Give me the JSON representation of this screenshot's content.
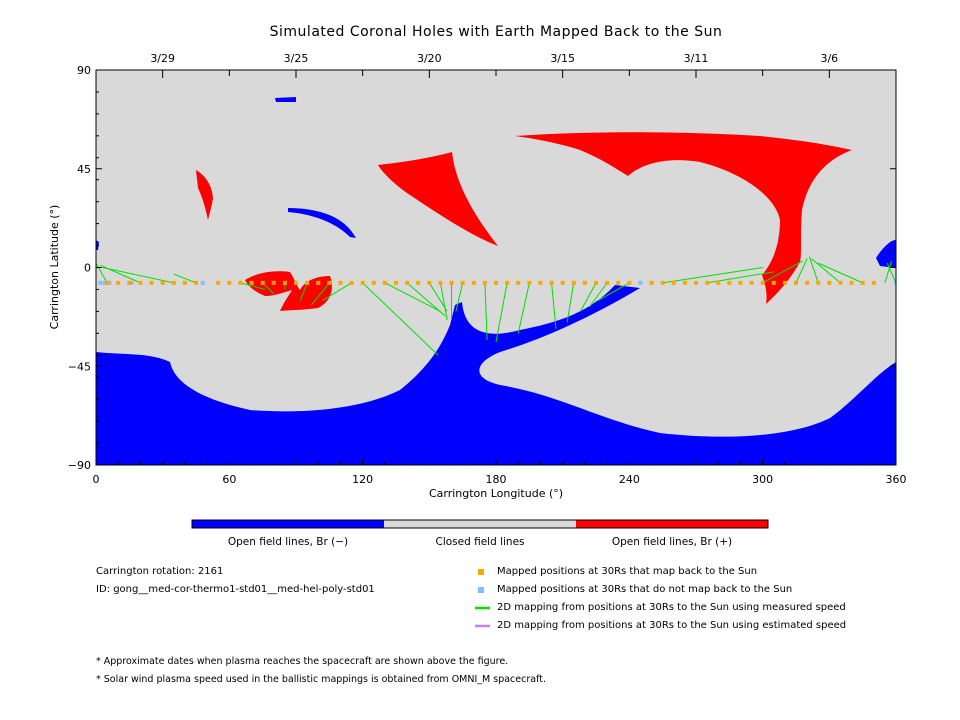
{
  "chart_data": {
    "type": "map",
    "title": "Simulated Coronal Holes with Earth Mapped Back to the Sun",
    "xlabel": "Carrington Longitude (°)",
    "ylabel": "Carrington Latitude (°)",
    "xlim": [
      0,
      360
    ],
    "ylim": [
      -90,
      90
    ],
    "x_ticks": [
      0,
      60,
      120,
      180,
      240,
      300,
      360
    ],
    "y_ticks": [
      -90,
      -45,
      0,
      45,
      90
    ],
    "top_axis": {
      "ticks": [
        {
          "lon": 30,
          "label": "3/29"
        },
        {
          "lon": 90,
          "label": "3/25"
        },
        {
          "lon": 150,
          "label": "3/20"
        },
        {
          "lon": 210,
          "label": "3/15"
        },
        {
          "lon": 270,
          "label": "3/11"
        },
        {
          "lon": 330,
          "label": "3/6"
        }
      ]
    },
    "colors": {
      "open_negative": "#0000ff",
      "closed": "#d9d9d9",
      "open_positive": "#ff0000",
      "mapped": "#ffa500",
      "not_mapped": "#7fbfff",
      "measured_line": "#00e000",
      "estimated_line": "#c080ff"
    },
    "colorbar": [
      {
        "label": "Open field lines, Br (−)",
        "color": "#0000ff"
      },
      {
        "label": "Closed field lines",
        "color": "#d9d9d9"
      },
      {
        "label": "Open field lines, Br (+)",
        "color": "#ff0000"
      }
    ],
    "spacecraft_lat": -7,
    "mapped_positions_lon": [
      5,
      10,
      15,
      20,
      25,
      30,
      35,
      40,
      45,
      55,
      60,
      65,
      70,
      75,
      80,
      85,
      90,
      95,
      100,
      105,
      110,
      115,
      120,
      125,
      130,
      135,
      140,
      145,
      150,
      155,
      160,
      165,
      170,
      175,
      180,
      185,
      190,
      195,
      200,
      205,
      210,
      215,
      220,
      225,
      230,
      235,
      240,
      250,
      255,
      260,
      265,
      270,
      275,
      280,
      285,
      290,
      295,
      300,
      305,
      310,
      315,
      320,
      325,
      330,
      335,
      340,
      345,
      350
    ],
    "not_mapped_positions_lon": [
      2,
      4,
      6,
      16,
      48,
      245,
      250,
      360
    ],
    "mapping_lines": [
      {
        "from": [
          5,
          -7
        ],
        "to": [
          0,
          2
        ]
      },
      {
        "from": [
          20,
          -7
        ],
        "to": [
          2,
          1
        ]
      },
      {
        "from": [
          35,
          -7
        ],
        "to": [
          3,
          0
        ]
      },
      {
        "from": [
          45,
          -7
        ],
        "to": [
          35,
          -3
        ]
      },
      {
        "from": [
          65,
          -7
        ],
        "to": [
          76,
          -10
        ]
      },
      {
        "from": [
          75,
          -7
        ],
        "to": [
          80,
          -12
        ]
      },
      {
        "from": [
          85,
          -7
        ],
        "to": [
          85,
          -10
        ]
      },
      {
        "from": [
          95,
          -7
        ],
        "to": [
          92,
          -15
        ]
      },
      {
        "from": [
          105,
          -7
        ],
        "to": [
          97,
          -17
        ]
      },
      {
        "from": [
          115,
          -7
        ],
        "to": [
          102,
          -15
        ]
      },
      {
        "from": [
          130,
          -7
        ],
        "to": [
          155,
          -20
        ]
      },
      {
        "from": [
          140,
          -7
        ],
        "to": [
          157,
          -22
        ]
      },
      {
        "from": [
          150,
          -7
        ],
        "to": [
          158,
          -20
        ]
      },
      {
        "from": [
          155,
          -7
        ],
        "to": [
          158,
          -24
        ]
      },
      {
        "from": [
          160,
          -7
        ],
        "to": [
          160,
          -23
        ]
      },
      {
        "from": [
          165,
          -7
        ],
        "to": [
          162,
          -20
        ]
      },
      {
        "from": [
          120,
          -7
        ],
        "to": [
          154,
          -40
        ]
      },
      {
        "from": [
          175,
          -7
        ],
        "to": [
          176,
          -33
        ]
      },
      {
        "from": [
          185,
          -7
        ],
        "to": [
          180,
          -34
        ]
      },
      {
        "from": [
          195,
          -7
        ],
        "to": [
          190,
          -30
        ]
      },
      {
        "from": [
          205,
          -7
        ],
        "to": [
          207,
          -28
        ]
      },
      {
        "from": [
          215,
          -7
        ],
        "to": [
          212,
          -25
        ]
      },
      {
        "from": [
          225,
          -7
        ],
        "to": [
          218,
          -20
        ]
      },
      {
        "from": [
          230,
          -7
        ],
        "to": [
          222,
          -18
        ]
      },
      {
        "from": [
          240,
          -7
        ],
        "to": [
          226,
          -15
        ]
      },
      {
        "from": [
          255,
          -7
        ],
        "to": [
          300,
          0
        ]
      },
      {
        "from": [
          275,
          -7
        ],
        "to": [
          305,
          -2
        ]
      },
      {
        "from": [
          300,
          -7
        ],
        "to": [
          318,
          3
        ]
      },
      {
        "from": [
          315,
          -7
        ],
        "to": [
          320,
          4
        ]
      },
      {
        "from": [
          325,
          -7
        ],
        "to": [
          321,
          5
        ]
      },
      {
        "from": [
          335,
          -7
        ],
        "to": [
          322,
          4
        ]
      },
      {
        "from": [
          345,
          -7
        ],
        "to": [
          325,
          2
        ]
      },
      {
        "from": [
          355,
          -7
        ],
        "to": [
          358,
          3
        ]
      },
      {
        "from": [
          360,
          -7
        ],
        "to": [
          356,
          2
        ]
      }
    ]
  },
  "info": {
    "rotation_label": "Carrington rotation: 2161",
    "id_label": "ID: gong__med-cor-thermo1-std01__med-hel-poly-std01"
  },
  "legend": [
    {
      "label": "Mapped positions at 30Rs that map back to the Sun",
      "color": "#ffa500",
      "kind": "square"
    },
    {
      "label": "Mapped positions at 30Rs that do not map back to the Sun",
      "color": "#7fbfff",
      "kind": "square"
    },
    {
      "label": "2D mapping from positions at 30Rs to the Sun using measured speed",
      "color": "#00e000",
      "kind": "line"
    },
    {
      "label": "2D mapping from positions at 30Rs to the Sun using estimated speed",
      "color": "#c080ff",
      "kind": "line"
    }
  ],
  "notes": [
    "* Approximate dates when plasma reaches the spacecraft are shown above the figure.",
    "* Solar wind plasma speed used in the ballistic mappings is obtained from OMNI_M spacecraft."
  ]
}
